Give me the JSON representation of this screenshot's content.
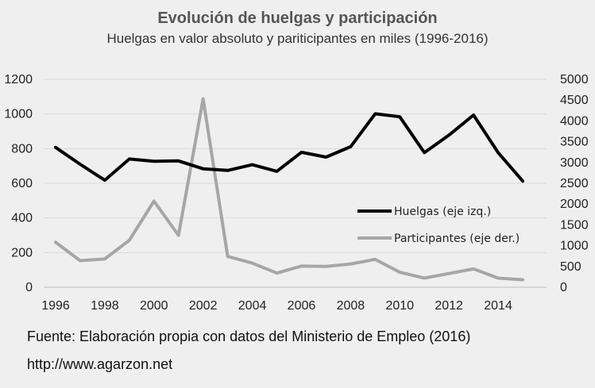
{
  "chart_data": {
    "type": "line",
    "title": "Evolución de huelgas y participación",
    "subtitle": "Huelgas en valor absoluto y pariticipantes en miles (1996-2016)",
    "x": [
      1996,
      1997,
      1998,
      1999,
      2000,
      2001,
      2002,
      2003,
      2004,
      2005,
      2006,
      2007,
      2008,
      2009,
      2010,
      2011,
      2012,
      2013,
      2014,
      2015
    ],
    "x_ticks": [
      "1996",
      "1998",
      "2000",
      "2002",
      "2004",
      "2006",
      "2008",
      "2010",
      "2012",
      "2014"
    ],
    "y_left_ticks": [
      "0",
      "200",
      "400",
      "600",
      "800",
      "1000",
      "1200"
    ],
    "y_right_ticks": [
      "0",
      "500",
      "1000",
      "1500",
      "2000",
      "2500",
      "3000",
      "3500",
      "4000",
      "4500",
      "5000"
    ],
    "y_left_lim": [
      0,
      1200
    ],
    "y_right_lim": [
      0,
      5000
    ],
    "grid": "horizontal",
    "legend_position": "center-right",
    "series": [
      {
        "name": "Huelgas (eje izq.)",
        "axis": "left",
        "color": "#000000",
        "values": [
          807,
          710,
          618,
          740,
          727,
          729,
          684,
          674,
          707,
          669,
          779,
          751,
          811,
          1001,
          984,
          777,
          878,
          994,
          777,
          613
        ]
      },
      {
        "name": "Participantes (eje der.)",
        "axis": "right",
        "color": "#a6a6a6",
        "values": [
          1080,
          640,
          680,
          1130,
          2070,
          1250,
          4530,
          740,
          580,
          340,
          510,
          500,
          560,
          670,
          360,
          220,
          330,
          440,
          220,
          180
        ]
      }
    ]
  },
  "footer": {
    "source": "Fuente: Elaboración propia con datos del Ministerio de Empleo (2016)",
    "url": "http://www.agarzon.net"
  }
}
